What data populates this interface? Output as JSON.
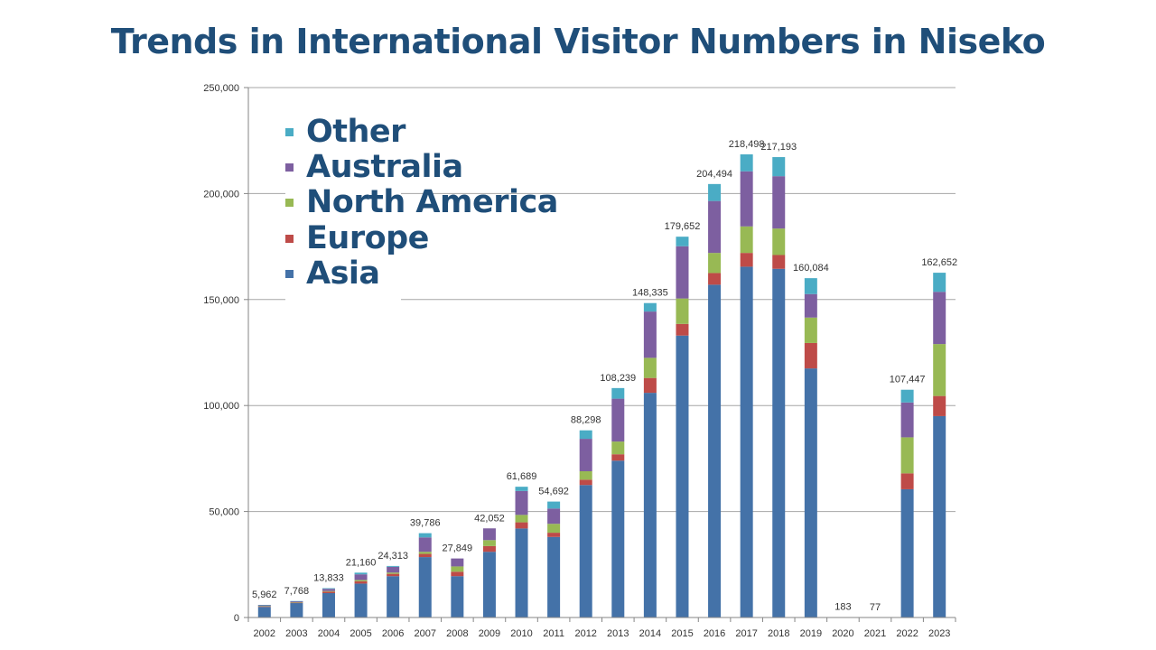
{
  "title": "Trends in International Visitor Numbers in Niseko",
  "chart_data": {
    "type": "bar",
    "stacked": true,
    "title": "Trends in International Visitor Numbers in Niseko",
    "xlabel": "",
    "ylabel": "",
    "ylim": [
      0,
      250000
    ],
    "yticks": [
      0,
      50000,
      100000,
      150000,
      200000,
      250000
    ],
    "ytick_labels": [
      "0",
      "50,000",
      "100,000",
      "150,000",
      "200,000",
      "250,000"
    ],
    "grid": true,
    "legend_position": "top-left",
    "categories": [
      "2002",
      "2003",
      "2004",
      "2005",
      "2006",
      "2007",
      "2008",
      "2009",
      "2010",
      "2011",
      "2012",
      "2013",
      "2014",
      "2015",
      "2016",
      "2017",
      "2018",
      "2019",
      "2020",
      "2021",
      "2022",
      "2023"
    ],
    "total_labels": [
      "5,962",
      "7,768",
      "13,833",
      "21,160",
      "24,313",
      "39,786",
      "27,849",
      "42,052",
      "61,689",
      "54,692",
      "88,298",
      "108,239",
      "148,335",
      "179,652",
      "204,494",
      "218,498",
      "217,193",
      "160,084",
      "183",
      "77",
      "107,447",
      "162,652"
    ],
    "totals": [
      5962,
      7768,
      13833,
      21160,
      24313,
      39786,
      27849,
      42052,
      61689,
      54692,
      88298,
      108239,
      148335,
      179652,
      204494,
      218498,
      217193,
      160084,
      183,
      77,
      107447,
      162652
    ],
    "series": [
      {
        "name": "Asia",
        "color": "#4472a8",
        "values": [
          5000,
          6800,
          11500,
          16000,
          19500,
          28500,
          19500,
          31000,
          42000,
          38000,
          62500,
          74000,
          106000,
          133000,
          157000,
          165500,
          164500,
          117500,
          80,
          40,
          60500,
          95000
        ]
      },
      {
        "name": "Europe",
        "color": "#be4b48",
        "values": [
          300,
          200,
          700,
          1100,
          1100,
          1500,
          2100,
          2700,
          2900,
          2000,
          2500,
          3000,
          7000,
          5500,
          5500,
          6500,
          6500,
          12000,
          60,
          20,
          7500,
          9500
        ]
      },
      {
        "name": "North America",
        "color": "#98b954",
        "values": [
          100,
          200,
          300,
          600,
          600,
          1000,
          2500,
          2800,
          3500,
          4200,
          4000,
          6000,
          9500,
          12000,
          9500,
          12500,
          12500,
          12000,
          20,
          10,
          17000,
          24500
        ]
      },
      {
        "name": "Australia",
        "color": "#7d5fa0",
        "values": [
          462,
          468,
          1033,
          2660,
          2713,
          6786,
          3749,
          5552,
          11289,
          7192,
          15298,
          20239,
          21835,
          24652,
          24494,
          25998,
          24693,
          11084,
          23,
          7,
          16447,
          24652
        ]
      },
      {
        "name": "Other",
        "color": "#4aacc5",
        "values": [
          100,
          100,
          300,
          800,
          400,
          2000,
          0,
          0,
          2000,
          3300,
          4000,
          5000,
          4000,
          4500,
          8000,
          8000,
          9000,
          7500,
          0,
          0,
          6000,
          9000
        ]
      }
    ]
  },
  "legend": {
    "items": [
      {
        "label": "Other",
        "color": "#4aacc5"
      },
      {
        "label": "Australia",
        "color": "#7d5fa0"
      },
      {
        "label": "North America",
        "color": "#98b954"
      },
      {
        "label": "Europe",
        "color": "#be4b48"
      },
      {
        "label": "Asia",
        "color": "#4472a8"
      }
    ]
  }
}
